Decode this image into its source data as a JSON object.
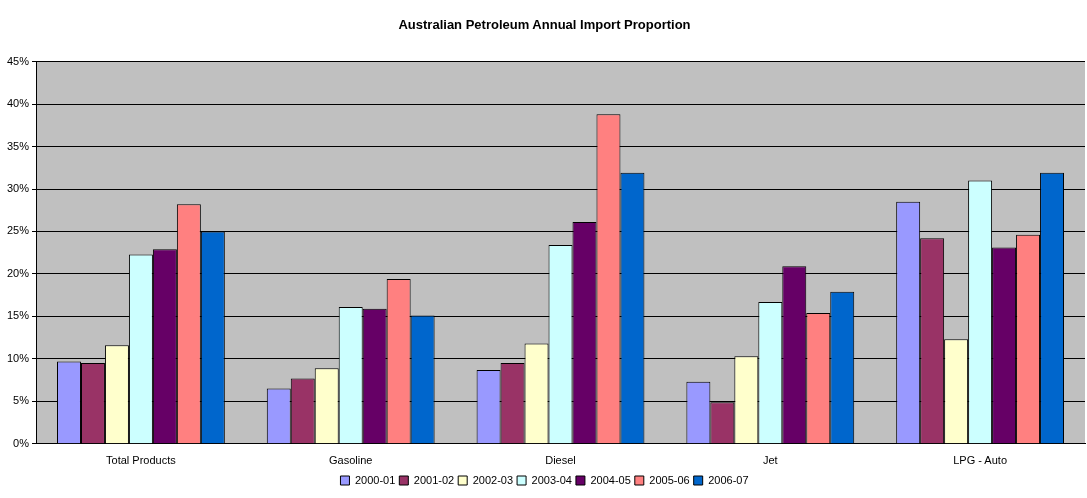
{
  "chart_data": {
    "type": "bar",
    "title": "Australian Petroleum Annual Import Proportion",
    "categories": [
      "Total Products",
      "Gasoline",
      "Diesel",
      "Jet",
      "LPG - Auto"
    ],
    "series": [
      {
        "name": "2000-01",
        "color": "#9999ff",
        "values": [
          9.7,
          6.5,
          8.7,
          7.3,
          28.5
        ]
      },
      {
        "name": "2001-02",
        "color": "#993366",
        "values": [
          9.5,
          7.7,
          9.5,
          4.9,
          24.2
        ]
      },
      {
        "name": "2002-03",
        "color": "#ffffcc",
        "values": [
          11.6,
          8.9,
          11.8,
          10.3,
          12.3
        ]
      },
      {
        "name": "2003-04",
        "color": "#ccffff",
        "values": [
          22.3,
          16.1,
          23.4,
          16.7,
          31.0
        ]
      },
      {
        "name": "2004-05",
        "color": "#660066",
        "values": [
          22.9,
          15.9,
          26.1,
          20.9,
          23.1
        ]
      },
      {
        "name": "2005-06",
        "color": "#ff8080",
        "values": [
          28.2,
          19.4,
          38.8,
          15.4,
          24.6
        ]
      },
      {
        "name": "2006-07",
        "color": "#0066cc",
        "values": [
          25.0,
          15.1,
          31.9,
          17.9,
          31.9
        ]
      }
    ],
    "ylim": [
      0,
      45
    ],
    "yticks": [
      {
        "value": 0,
        "label": "0%"
      },
      {
        "value": 5,
        "label": "5%"
      },
      {
        "value": 10,
        "label": "10%"
      },
      {
        "value": 15,
        "label": "15%"
      },
      {
        "value": 20,
        "label": "20%"
      },
      {
        "value": 25,
        "label": "25%"
      },
      {
        "value": 30,
        "label": "30%"
      },
      {
        "value": 35,
        "label": "35%"
      },
      {
        "value": 40,
        "label": "40%"
      },
      {
        "value": 45,
        "label": "45%"
      }
    ],
    "grid": "y",
    "legend": "bottom"
  }
}
